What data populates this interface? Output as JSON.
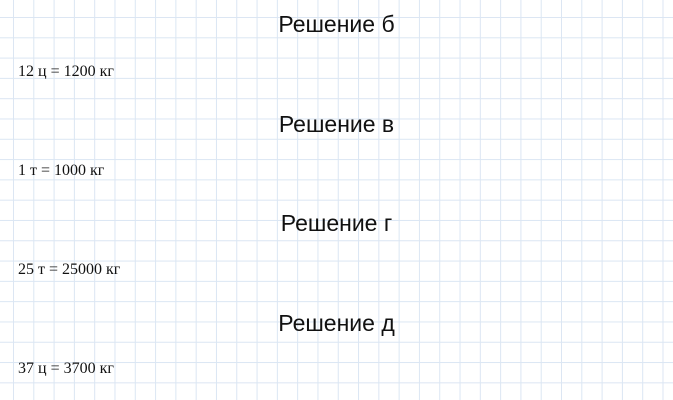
{
  "sections": [
    {
      "heading": "Решение б",
      "line": "12 ц = 1200 кг"
    },
    {
      "heading": "Решение в",
      "line": "1 т = 1000 кг"
    },
    {
      "heading": "Решение г",
      "line": "25 т = 25000 кг"
    },
    {
      "heading": "Решение д",
      "line": "37 ц = 3700 кг"
    }
  ]
}
